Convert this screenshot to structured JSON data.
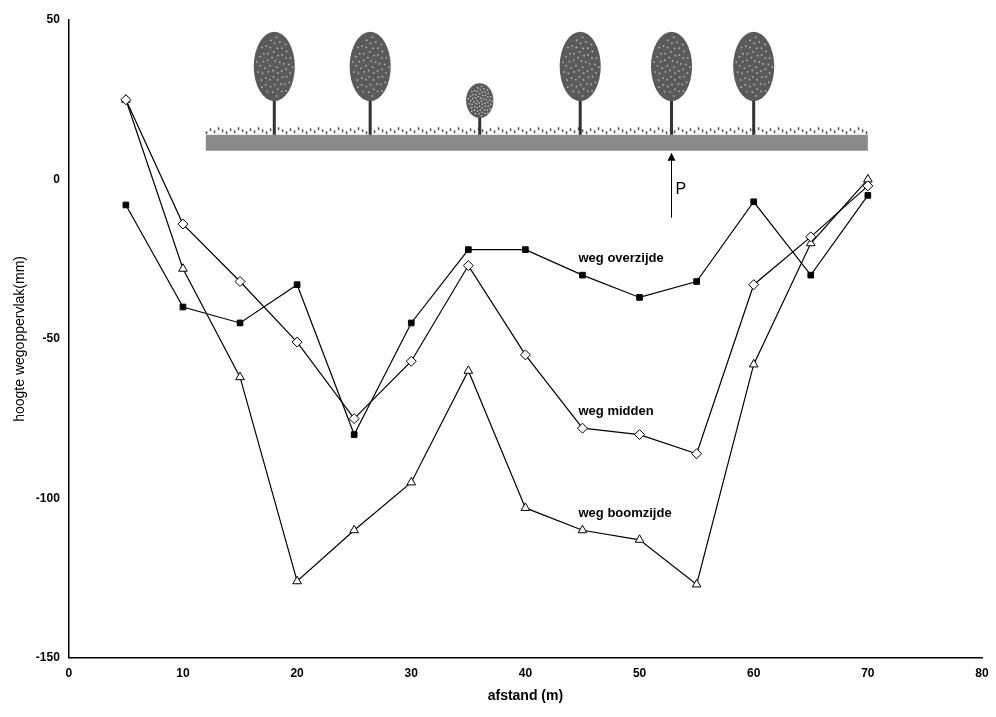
{
  "chart_data": {
    "type": "line",
    "x_label": "afstand (m)",
    "y_label": "hoogte wegoppervlak(mm)",
    "xlim": [
      0,
      80
    ],
    "xticks": [
      0,
      10,
      20,
      30,
      40,
      50,
      60,
      70,
      80
    ],
    "ylim": [
      -150,
      50
    ],
    "yticks": [
      -150,
      -100,
      -50,
      0,
      50
    ],
    "grid": false,
    "annotations": [
      {
        "text": "P"
      }
    ],
    "x": [
      5,
      10,
      15,
      20,
      25,
      30,
      35,
      40,
      45,
      50,
      55,
      60,
      65,
      70
    ],
    "series": [
      {
        "name": "weg overzijde",
        "color": "#000000",
        "marker": "filled_square",
        "values": [
          -8,
          -40,
          -45,
          -33,
          -80,
          -45,
          -22,
          -22,
          -30,
          -37,
          -32,
          -7,
          -30,
          -5
        ]
      },
      {
        "name": "weg midden",
        "color": "#000000",
        "marker": "open_diamond",
        "values": [
          25,
          -14,
          -32,
          -51,
          -75,
          -57,
          -27,
          -55,
          -78,
          -80,
          -86,
          -33,
          -18,
          -2
        ]
      },
      {
        "name": "weg boomzijde",
        "color": "#000000",
        "marker": "open_triangle",
        "values": [
          25,
          -28,
          -62,
          -126,
          -110,
          -95,
          -60,
          -103,
          -110,
          -113,
          -127,
          -58,
          -20,
          0
        ]
      }
    ]
  }
}
